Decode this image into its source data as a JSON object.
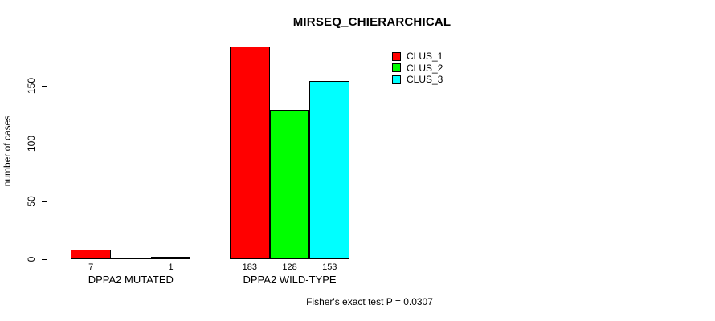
{
  "chart_data": {
    "type": "bar",
    "title": "MIRSEQ_CHIERARCHICAL",
    "ylabel": "number of cases",
    "xlabel": "",
    "annotation": "Fisher's exact test P = 0.0307",
    "categories": [
      "DPPA2 MUTATED",
      "DPPA2 WILD-TYPE"
    ],
    "series": [
      {
        "name": "CLUS_1",
        "color": "#ff0000",
        "values": [
          7,
          183
        ],
        "value_labels": [
          "7",
          "183"
        ]
      },
      {
        "name": "CLUS_2",
        "color": "#00ff00",
        "values": [
          0,
          128
        ],
        "value_labels": [
          "",
          "128"
        ]
      },
      {
        "name": "CLUS_3",
        "color": "#00ffff",
        "values": [
          1,
          153
        ],
        "value_labels": [
          "1",
          "153"
        ]
      }
    ],
    "yticks": [
      0,
      50,
      100,
      150
    ],
    "ylim": [
      0,
      190
    ],
    "grid": false,
    "legend_position": "top-right",
    "bar_border_color": "#000000",
    "background_color": "#ffffff"
  }
}
